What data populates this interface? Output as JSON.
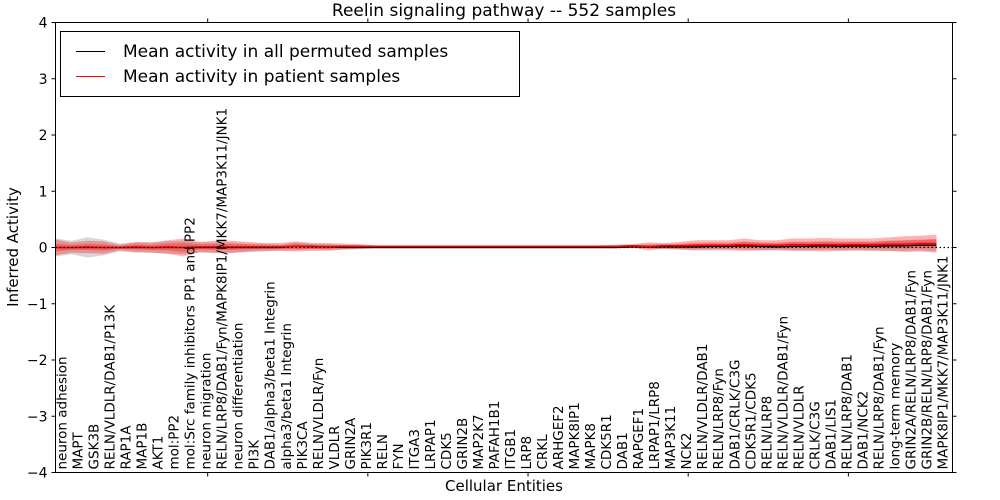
{
  "figure": {
    "title": "Reelin signaling pathway -- 552 samples",
    "xlabel": "Cellular Entities",
    "ylabel": "Inferred Activity"
  },
  "legend": {
    "position": "upper left",
    "entries": [
      {
        "label": "Mean activity in all permuted samples",
        "color": "#000000"
      },
      {
        "label": "Mean activity in patient samples",
        "color": "#ff0000"
      }
    ]
  },
  "chart_data": {
    "type": "line",
    "title": "Reelin signaling pathway -- 552 samples",
    "xlabel": "Cellular Entities",
    "ylabel": "Inferred Activity",
    "ylim": [
      -4,
      4
    ],
    "yticks": [
      -4,
      -3,
      -2,
      -1,
      0,
      1,
      2,
      3,
      4
    ],
    "grid": false,
    "legend_position": "upper left",
    "zero_line": {
      "style": "dotted",
      "color": "#000000",
      "value": 0
    },
    "x_minor_ticks": [
      9.5,
      19.5,
      29.5,
      39.5,
      49.5
    ],
    "categories": [
      "neuron adhesion",
      "MAPT",
      "GSK3B",
      "RELN/VLDLR/DAB1/P13K",
      "RAP1A",
      "MAP1B",
      "AKT1",
      "mol:PP2",
      "mol:Src family inhibitors PP1 and PP2",
      "neuron migration",
      "RELN/LRP8/DAB1/Fyn/MAPK8IP1/MKK7/MAP3K11/JNK1",
      "neuron differentiation",
      "PI3K",
      "DAB1/alpha3/beta1 Integrin",
      "alpha3/beta1 Integrin",
      "PIK3CA",
      "RELN/VLDLR/Fyn",
      "VLDLR",
      "GRIN2A",
      "PIK3R1",
      "RELN",
      "FYN",
      "ITGA3",
      "LRPAP1",
      "CDK5",
      "GRIN2B",
      "MAP2K7",
      "PAFAH1B1",
      "ITGB1",
      "LRP8",
      "CRKL",
      "ARHGEF2",
      "MAPK8IP1",
      "MAPK8",
      "CDK5R1",
      "DAB1",
      "RAPGEF1",
      "LRPAP1/LRP8",
      "MAP3K11",
      "NCK2",
      "RELN/VLDLR/DAB1",
      "RELN/LRP8/Fyn",
      "DAB1/CRLK/C3G",
      "CDK5R1/CDK5",
      "RELN/LRP8",
      "RELN/VLDLR/DAB1/Fyn",
      "RELN/VLDLR",
      "CRLK/C3G",
      "DAB1/LIS1",
      "RELN/LRP8/DAB1",
      "DAB1/NCK2",
      "RELN/LRP8/DAB1/Fyn",
      "long-term memory",
      "GRIN2A/RELN/LRP8/DAB1/Fyn",
      "GRIN2B/RELN/LRP8/DAB1/Fyn",
      "MAPK8IP1/MKK7/MAP3K11/JNK1"
    ],
    "series": [
      {
        "name": "Mean activity in all permuted samples",
        "color": "#000000",
        "values": [
          0,
          0,
          0,
          0,
          0,
          0,
          0,
          0,
          0,
          0,
          0,
          0,
          0,
          0,
          0,
          0.02,
          0.02,
          0.01,
          0,
          0,
          0,
          0,
          0,
          0,
          0,
          0,
          0,
          0,
          0,
          0,
          0,
          0,
          0,
          0,
          0,
          0,
          0.01,
          0.01,
          0.01,
          0.01,
          0.01,
          0.02,
          0.02,
          0.03,
          0.02,
          0.01,
          0.02,
          0.02,
          0.03,
          0.02,
          0.03,
          0.02,
          0.03,
          0.03,
          0.04,
          0.04
        ]
      },
      {
        "name": "Mean activity in patient samples",
        "color": "#ff0000",
        "values": [
          0,
          0,
          0.01,
          0,
          0,
          0.01,
          0,
          0.01,
          0,
          0.01,
          0.01,
          0.01,
          0.01,
          0.01,
          0.01,
          0.02,
          0.01,
          0.01,
          0.02,
          0.02,
          0.02,
          0.02,
          0.02,
          0.02,
          0.02,
          0.02,
          0.02,
          0.02,
          0.02,
          0.02,
          0.02,
          0.02,
          0.02,
          0.02,
          0.02,
          0.02,
          0.03,
          0.02,
          0.03,
          0.03,
          0.04,
          0.04,
          0.04,
          0.05,
          0.04,
          0.04,
          0.05,
          0.05,
          0.05,
          0.05,
          0.05,
          0.05,
          0.06,
          0.06,
          0.07,
          0.07
        ]
      }
    ],
    "bands": [
      {
        "name": "permuted samples std band",
        "color": "rgba(120,120,120,0.30)",
        "mean_series": 0,
        "layers": 1,
        "half_widths": [
          0.16,
          0.12,
          0.18,
          0.14,
          0.07,
          0.09,
          0.09,
          0.11,
          0.12,
          0.09,
          0.09,
          0.09,
          0.07,
          0.07,
          0.05,
          0.07,
          0.05,
          0.05,
          0.04,
          0.03,
          0.02,
          0.02,
          0.02,
          0.02,
          0.02,
          0.02,
          0.02,
          0.02,
          0.02,
          0.02,
          0.02,
          0.02,
          0.02,
          0.02,
          0.02,
          0.02,
          0.02,
          0.02,
          0.04,
          0.04,
          0.05,
          0.05,
          0.05,
          0.07,
          0.07,
          0.05,
          0.07,
          0.07,
          0.07,
          0.07,
          0.07,
          0.07,
          0.09,
          0.09,
          0.09,
          0.11
        ]
      },
      {
        "name": "patient samples std band",
        "color": "rgba(255,0,0,0.30)",
        "mean_series": 1,
        "layers": 2,
        "half_widths": [
          0.14,
          0.09,
          0.11,
          0.11,
          0.05,
          0.09,
          0.09,
          0.12,
          0.16,
          0.09,
          0.11,
          0.11,
          0.09,
          0.07,
          0.07,
          0.09,
          0.07,
          0.07,
          0.05,
          0.04,
          0.02,
          0.02,
          0.02,
          0.02,
          0.02,
          0.02,
          0.02,
          0.02,
          0.02,
          0.02,
          0.02,
          0.02,
          0.02,
          0.02,
          0.02,
          0.03,
          0.03,
          0.07,
          0.05,
          0.07,
          0.09,
          0.09,
          0.09,
          0.11,
          0.09,
          0.09,
          0.11,
          0.11,
          0.12,
          0.11,
          0.11,
          0.11,
          0.12,
          0.14,
          0.14,
          0.16
        ]
      }
    ]
  }
}
